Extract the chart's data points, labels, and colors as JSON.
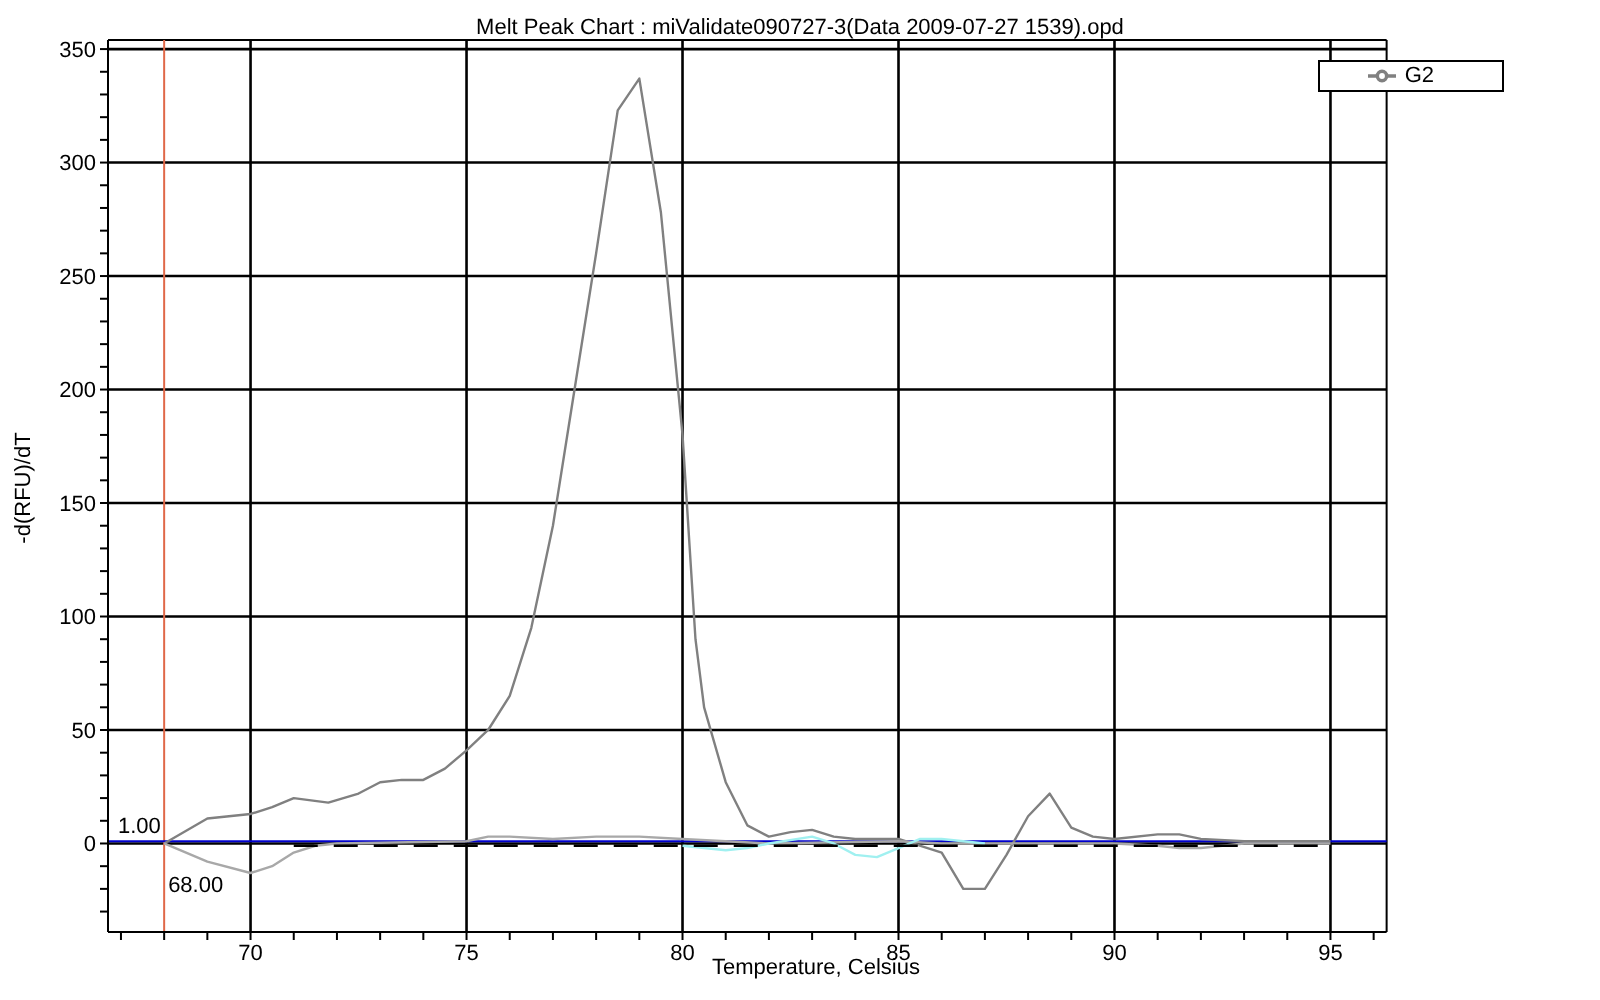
{
  "chart_data": {
    "type": "line",
    "title": "Melt Peak Chart : miValidate090727-3(Data 2009-07-27 1539).opd",
    "xlabel": "Temperature, Celsius",
    "ylabel": "-d(RFU)/dT",
    "xlim": [
      66.7,
      96.3
    ],
    "ylim": [
      -39,
      354
    ],
    "xticks": [
      {
        "value": 67,
        "label": null
      },
      {
        "value": 68,
        "label": null
      },
      {
        "value": 69,
        "label": null
      },
      70,
      {
        "value": 71,
        "label": null
      },
      {
        "value": 72,
        "label": null
      },
      {
        "value": 73,
        "label": null
      },
      {
        "value": 74,
        "label": null
      },
      75,
      {
        "value": 76,
        "label": null
      },
      {
        "value": 77,
        "label": null
      },
      {
        "value": 78,
        "label": null
      },
      {
        "value": 79,
        "label": null
      },
      80,
      {
        "value": 81,
        "label": null
      },
      {
        "value": 82,
        "label": null
      },
      {
        "value": 83,
        "label": null
      },
      {
        "value": 84,
        "label": null
      },
      85,
      {
        "value": 86,
        "label": null
      },
      {
        "value": 87,
        "label": null
      },
      {
        "value": 88,
        "label": null
      },
      {
        "value": 89,
        "label": null
      },
      90,
      {
        "value": 91,
        "label": null
      },
      {
        "value": 92,
        "label": null
      },
      {
        "value": 93,
        "label": null
      },
      {
        "value": 94,
        "label": null
      },
      95,
      {
        "value": 96,
        "label": null
      }
    ],
    "yticks": [
      {
        "value": -30,
        "label": null
      },
      {
        "value": -20,
        "label": null
      },
      {
        "value": -10,
        "label": null
      },
      0,
      {
        "value": 10,
        "label": null
      },
      {
        "value": 20,
        "label": null
      },
      {
        "value": 30,
        "label": null
      },
      {
        "value": 40,
        "label": null
      },
      50,
      {
        "value": 60,
        "label": null
      },
      {
        "value": 70,
        "label": null
      },
      {
        "value": 80,
        "label": null
      },
      {
        "value": 90,
        "label": null
      },
      100,
      {
        "value": 110,
        "label": null
      },
      {
        "value": 120,
        "label": null
      },
      {
        "value": 130,
        "label": null
      },
      {
        "value": 140,
        "label": null
      },
      150,
      {
        "value": 160,
        "label": null
      },
      {
        "value": 170,
        "label": null
      },
      {
        "value": 180,
        "label": null
      },
      {
        "value": 190,
        "label": null
      },
      200,
      {
        "value": 210,
        "label": null
      },
      {
        "value": 220,
        "label": null
      },
      {
        "value": 230,
        "label": null
      },
      {
        "value": 240,
        "label": null
      },
      250,
      {
        "value": 260,
        "label": null
      },
      {
        "value": 270,
        "label": null
      },
      {
        "value": 280,
        "label": null
      },
      {
        "value": 290,
        "label": null
      },
      300,
      {
        "value": 310,
        "label": null
      },
      {
        "value": 320,
        "label": null
      },
      {
        "value": 330,
        "label": null
      },
      {
        "value": 340,
        "label": null
      },
      350
    ],
    "grid": true,
    "legend": "top right",
    "marker": "none",
    "series": [
      {
        "name": "G2",
        "color": "#808080",
        "x": [
          68,
          69,
          70,
          70.5,
          71,
          71.8,
          72.5,
          73,
          73.5,
          74,
          74.5,
          75,
          75.5,
          76,
          76.5,
          77,
          77.5,
          78,
          78.5,
          79,
          79.5,
          80,
          80.3,
          80.5,
          81,
          81.5,
          82,
          82.5,
          83,
          83.5,
          84,
          85,
          86,
          86.5,
          87,
          87.5,
          88,
          88.5,
          89,
          89.5,
          90,
          91,
          91.5,
          92,
          93,
          94,
          95
        ],
        "values": [
          0,
          11,
          13,
          16,
          20,
          18,
          22,
          27,
          28,
          28,
          33,
          41,
          50,
          65,
          95,
          140,
          200,
          260,
          323,
          337,
          278,
          180,
          90,
          60,
          27,
          8,
          3,
          5,
          6,
          3,
          2,
          2,
          -4,
          -20,
          -20,
          -5,
          12,
          22,
          7,
          3,
          2,
          4,
          4,
          2,
          1,
          1,
          1
        ]
      },
      {
        "color": "#a8a8a8",
        "x": [
          68,
          69,
          70,
          70.5,
          71,
          71.5,
          72,
          75,
          75.5,
          76,
          77,
          78,
          79,
          80,
          81,
          82,
          85,
          86,
          90,
          91,
          91.5,
          92,
          93,
          95
        ],
        "values": [
          0,
          -8,
          -13,
          -10,
          -4,
          -1,
          0,
          1,
          3,
          3,
          2,
          3,
          3,
          2,
          1,
          0,
          1,
          0,
          0,
          -1,
          -2,
          -2,
          0,
          0
        ]
      },
      {
        "color": "#a0f0f0",
        "x": [
          80,
          81,
          81.5,
          82,
          83,
          83.5,
          84,
          84.5,
          85,
          85.5,
          86,
          87
        ],
        "values": [
          -1,
          -3,
          -2,
          0,
          3,
          0,
          -5,
          -6,
          -2,
          2,
          2,
          0
        ]
      },
      {
        "color": "#000000",
        "line_style": "dashed",
        "x": [
          71,
          95
        ],
        "values": [
          -1,
          -1
        ]
      }
    ],
    "ref_lines": [
      {
        "axis": "x",
        "value": 68,
        "label": "68.00",
        "color": "#e06848"
      },
      {
        "axis": "y",
        "value": 1,
        "label": "1.00",
        "color": "#0000cc"
      }
    ]
  }
}
